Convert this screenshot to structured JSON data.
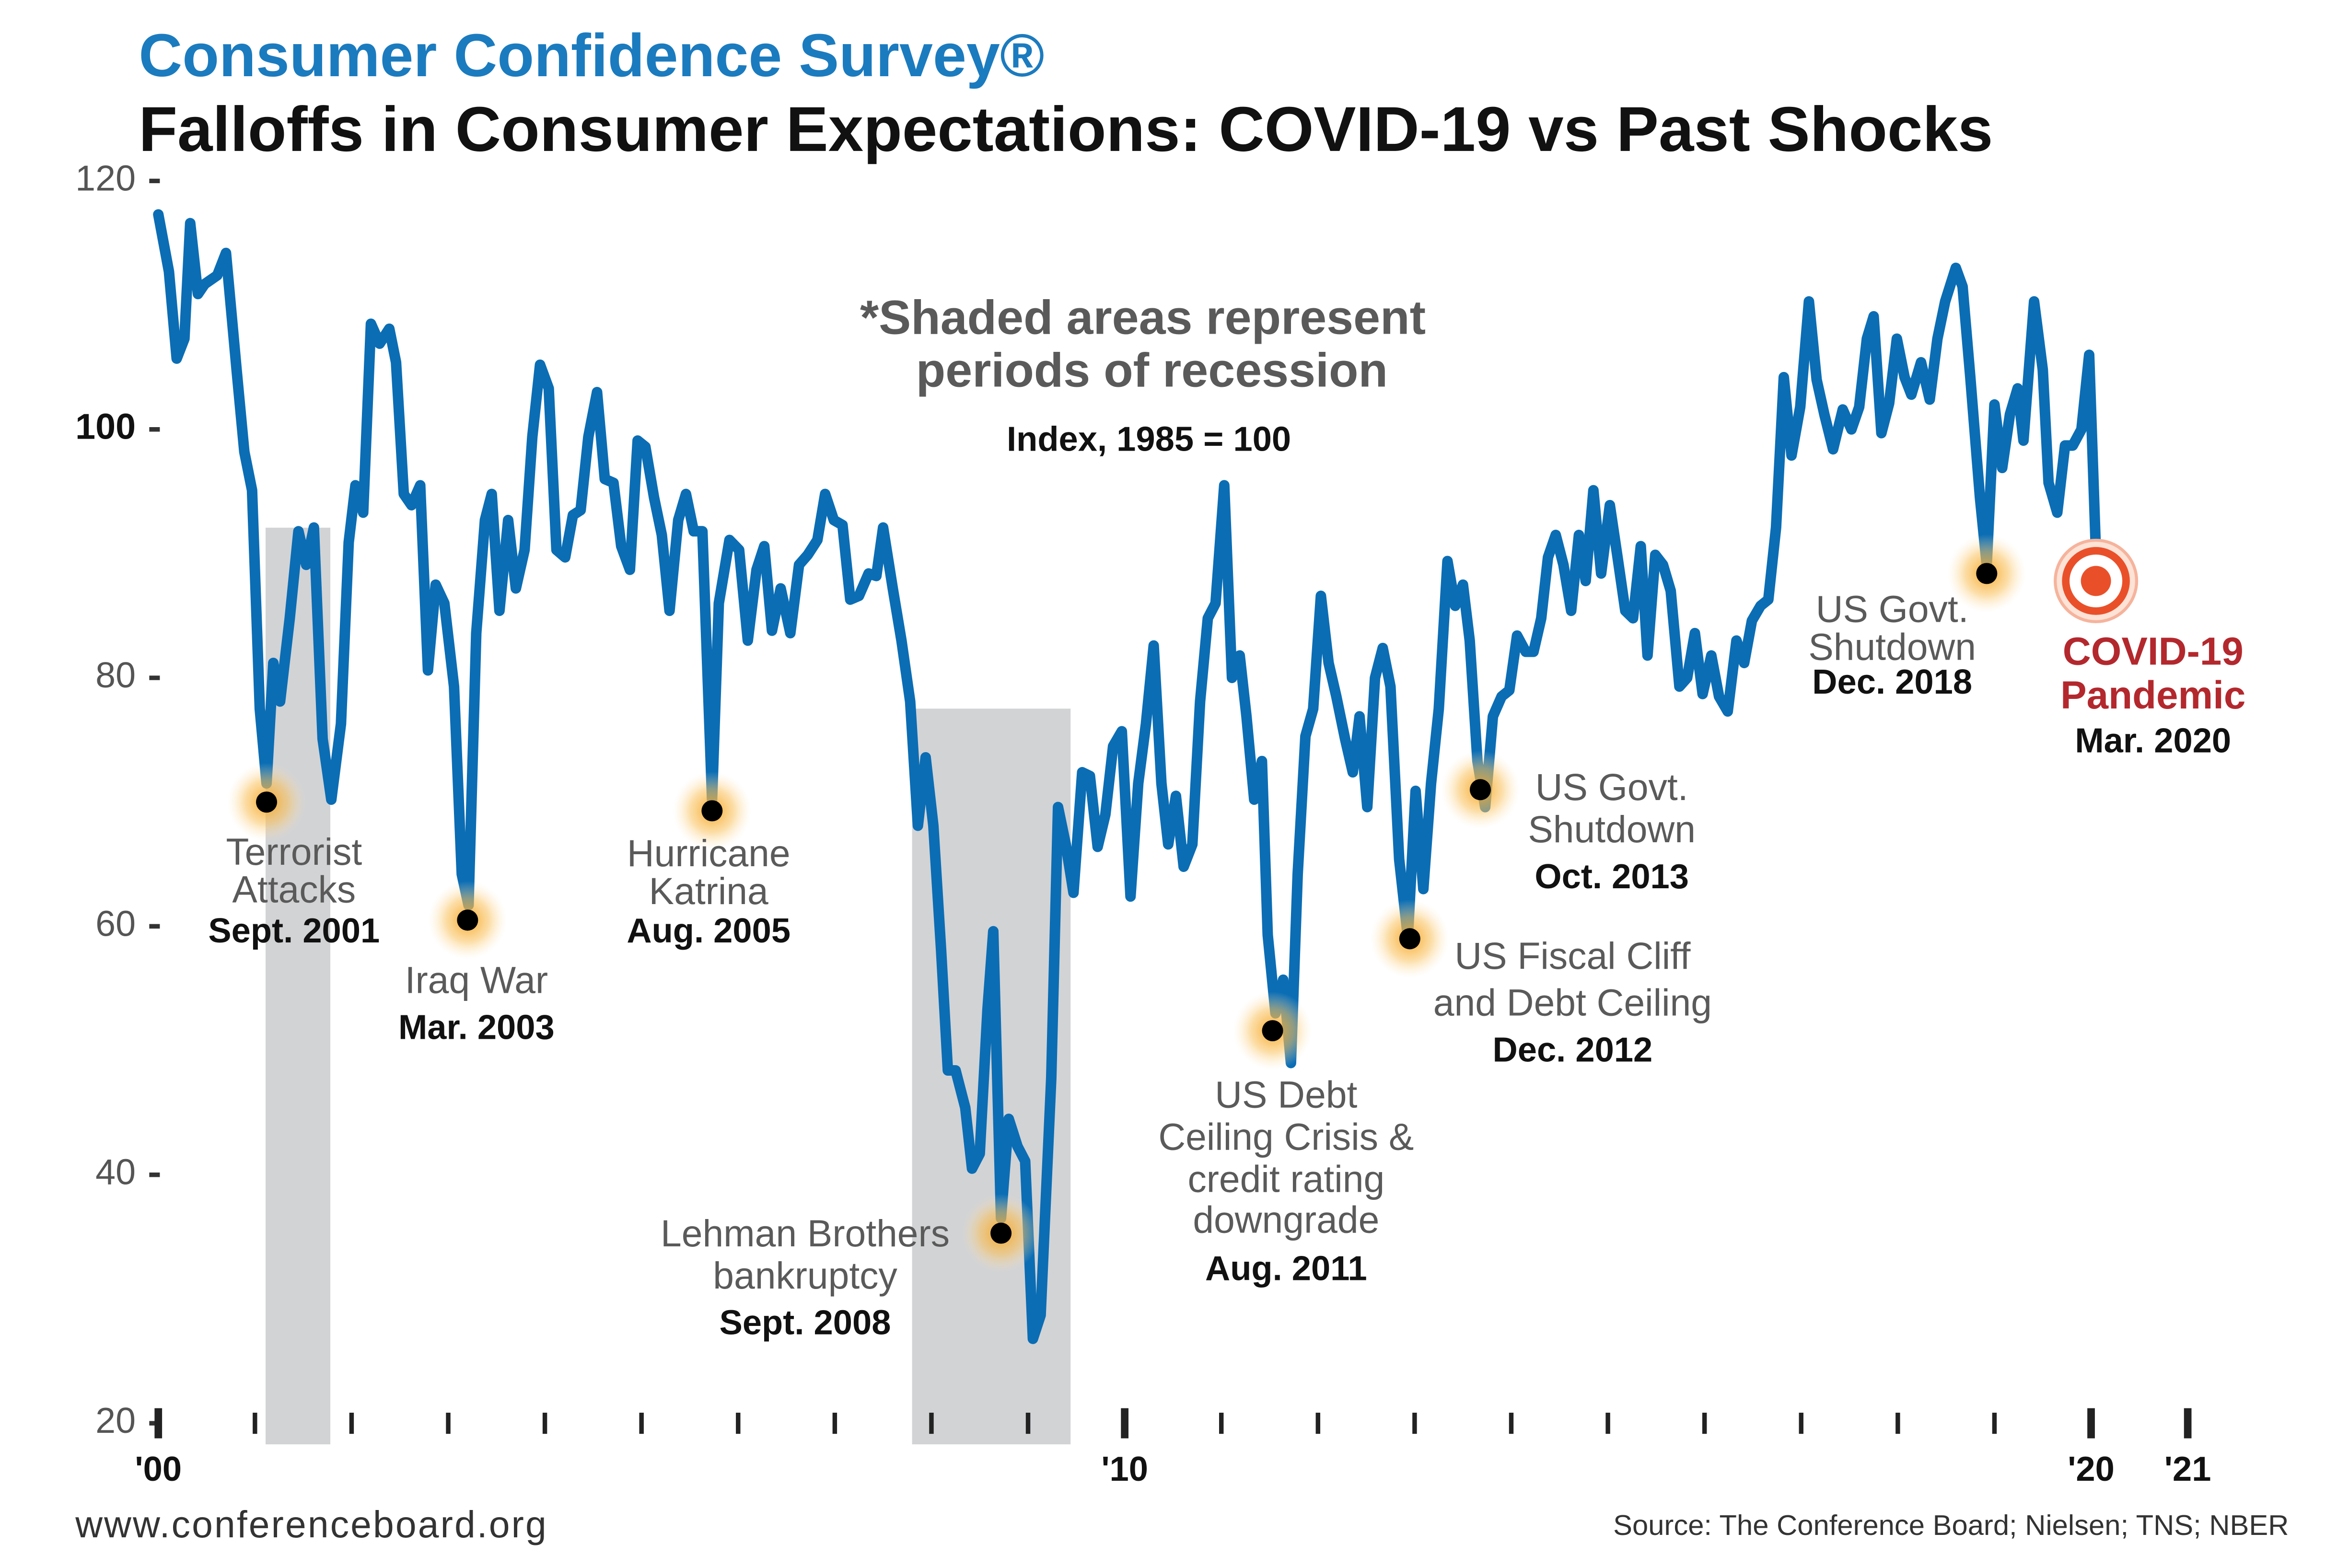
{
  "chart_data": {
    "type": "line",
    "title": "Consumer Confidence Survey®",
    "subtitle": "Falloffs in Consumer Expectations: COVID-19 vs Past Shocks",
    "note_lines": [
      "*Shaded areas represent",
      "periods of recession"
    ],
    "index_note": "Index, 1985 = 100",
    "footer_left": "www.conferenceboard.org",
    "footer_right": "Source: The Conference Board; Nielsen; TNS; NBER",
    "color": "#0b6db4",
    "xlim": [
      2000,
      2021
    ],
    "ylim": [
      20,
      120
    ],
    "yticks": [
      20,
      40,
      60,
      80,
      100,
      120
    ],
    "xticks": [
      {
        "value": 2000,
        "label": "'00"
      },
      {
        "value": 2001,
        "label": null
      },
      {
        "value": 2002,
        "label": null
      },
      {
        "value": 2003,
        "label": null
      },
      {
        "value": 2004,
        "label": null
      },
      {
        "value": 2005,
        "label": null
      },
      {
        "value": 2006,
        "label": null
      },
      {
        "value": 2007,
        "label": null
      },
      {
        "value": 2008,
        "label": null
      },
      {
        "value": 2009,
        "label": null
      },
      {
        "value": 2010,
        "label": "'10"
      },
      {
        "value": 2011,
        "label": null
      },
      {
        "value": 2012,
        "label": null
      },
      {
        "value": 2013,
        "label": null
      },
      {
        "value": 2014,
        "label": null
      },
      {
        "value": 2015,
        "label": null
      },
      {
        "value": 2016,
        "label": null
      },
      {
        "value": 2017,
        "label": null
      },
      {
        "value": 2018,
        "label": null
      },
      {
        "value": 2019,
        "label": null
      },
      {
        "value": 2020,
        "label": "'20"
      },
      {
        "value": 2021,
        "label": "'21"
      }
    ],
    "recessions": [
      [
        2001.11,
        2001.78
      ],
      [
        2007.8,
        2009.44
      ]
    ],
    "x": [
      2000.0,
      2000.11,
      2000.19,
      2000.27,
      2000.33,
      2000.41,
      2000.48,
      2000.61,
      2000.7,
      2000.81,
      2000.89,
      2000.97,
      2001.05,
      2001.12,
      2001.19,
      2001.26,
      2001.36,
      2001.45,
      2001.53,
      2001.61,
      2001.7,
      2001.79,
      2001.89,
      2001.97,
      2002.04,
      2002.12,
      2002.2,
      2002.29,
      2002.39,
      2002.46,
      2002.54,
      2002.62,
      2002.71,
      2002.79,
      2002.87,
      2002.96,
      2003.06,
      2003.14,
      2003.21,
      2003.29,
      2003.38,
      2003.45,
      2003.53,
      2003.62,
      2003.7,
      2003.79,
      2003.87,
      2003.95,
      2004.04,
      2004.12,
      2004.21,
      2004.29,
      2004.37,
      2004.45,
      2004.54,
      2004.62,
      2004.71,
      2004.79,
      2004.88,
      2004.96,
      2005.04,
      2005.13,
      2005.21,
      2005.29,
      2005.38,
      2005.46,
      2005.54,
      2005.63,
      2005.73,
      2005.8,
      2005.91,
      2006.01,
      2006.1,
      2006.19,
      2006.27,
      2006.35,
      2006.44,
      2006.54,
      2006.63,
      2006.72,
      2006.82,
      2006.9,
      2006.99,
      2007.08,
      2007.16,
      2007.25,
      2007.35,
      2007.43,
      2007.5,
      2007.6,
      2007.69,
      2007.78,
      2007.86,
      2007.94,
      2008.02,
      2008.1,
      2008.17,
      2008.25,
      2008.35,
      2008.42,
      2008.5,
      2008.58,
      2008.64,
      2008.72,
      2008.8,
      2008.89,
      2008.97,
      2009.05,
      2009.13,
      2009.24,
      2009.31,
      2009.39,
      2009.47,
      2009.56,
      2009.64,
      2009.72,
      2009.8,
      2009.88,
      2009.97,
      2010.06,
      2010.14,
      2010.22,
      2010.3,
      2010.38,
      2010.45,
      2010.53,
      2010.61,
      2010.7,
      2010.78,
      2010.86,
      2010.94,
      2011.03,
      2011.11,
      2011.19,
      2011.26,
      2011.34,
      2011.42,
      2011.48,
      2011.56,
      2011.64,
      2011.72,
      2011.79,
      2011.87,
      2011.95,
      2012.03,
      2012.11,
      2012.19,
      2012.28,
      2012.36,
      2012.43,
      2012.51,
      2012.59,
      2012.67,
      2012.75,
      2012.84,
      2012.93,
      2013.01,
      2013.09,
      2013.17,
      2013.25,
      2013.34,
      2013.42,
      2013.5,
      2013.57,
      2013.65,
      2013.73,
      2013.81,
      2013.9,
      2013.98,
      2014.06,
      2014.15,
      2014.23,
      2014.31,
      2014.38,
      2014.46,
      2014.54,
      2014.62,
      2014.7,
      2014.77,
      2014.85,
      2014.93,
      2015.02,
      2015.1,
      2015.18,
      2015.26,
      2015.34,
      2015.41,
      2015.49,
      2015.57,
      2015.65,
      2015.74,
      2015.82,
      2015.9,
      2015.98,
      2016.07,
      2016.15,
      2016.24,
      2016.33,
      2016.41,
      2016.49,
      2016.58,
      2016.66,
      2016.74,
      2016.82,
      2016.9,
      2016.99,
      2017.08,
      2017.16,
      2017.24,
      2017.33,
      2017.43,
      2017.52,
      2017.6,
      2017.68,
      2017.75,
      2017.83,
      2017.91,
      2017.99,
      2018.07,
      2018.14,
      2018.24,
      2018.33,
      2018.41,
      2018.49,
      2018.6,
      2018.67,
      2018.75,
      2018.85,
      2018.92,
      2019.0,
      2019.08,
      2019.16,
      2019.24,
      2019.3,
      2019.41,
      2019.5,
      2019.56,
      2019.65,
      2019.73,
      2019.81,
      2019.9,
      2019.98,
      2020.06
    ],
    "values": [
      117.3,
      112.7,
      105.7,
      107.3,
      116.6,
      110.9,
      111.7,
      112.4,
      114.2,
      104.8,
      98.2,
      95.1,
      77.5,
      71.5,
      81.2,
      78.1,
      84.8,
      91.8,
      89.1,
      92.1,
      75.1,
      70.2,
      76.3,
      90.9,
      95.5,
      93.3,
      108.5,
      106.9,
      108.1,
      105.4,
      94.8,
      93.9,
      95.5,
      80.6,
      87.5,
      86.0,
      79.3,
      64.2,
      61.7,
      83.6,
      92.7,
      94.8,
      85.4,
      92.7,
      87.2,
      90.3,
      99.4,
      105.2,
      103.3,
      90.3,
      89.7,
      93.1,
      93.5,
      99.4,
      103.0,
      96.0,
      95.7,
      90.6,
      88.7,
      99.1,
      98.6,
      94.5,
      91.5,
      85.4,
      92.7,
      94.8,
      91.8,
      91.8,
      70.2,
      86.0,
      91.1,
      90.3,
      83.0,
      88.7,
      90.6,
      83.8,
      87.2,
      83.6,
      89.1,
      89.9,
      91.1,
      94.8,
      92.7,
      92.3,
      86.3,
      86.6,
      88.4,
      88.2,
      92.1,
      87.2,
      83.0,
      78.1,
      68.1,
      73.6,
      68.1,
      58.1,
      48.4,
      48.4,
      45.4,
      40.5,
      41.7,
      53.3,
      59.6,
      36.5,
      44.5,
      42.3,
      41.1,
      26.8,
      28.7,
      47.8,
      69.6,
      66.6,
      62.7,
      72.4,
      72.1,
      66.4,
      69.0,
      74.5,
      75.7,
      62.4,
      71.5,
      76.3,
      82.6,
      71.5,
      66.6,
      70.5,
      64.8,
      66.6,
      78.1,
      84.8,
      86.0,
      95.5,
      80.0,
      81.8,
      76.9,
      70.2,
      73.3,
      59.3,
      53.0,
      55.7,
      49.0,
      64.2,
      75.3,
      77.5,
      86.6,
      81.2,
      78.5,
      75.1,
      72.4,
      76.9,
      69.6,
      80.0,
      82.4,
      79.3,
      65.4,
      59.1,
      70.9,
      63.0,
      71.5,
      77.5,
      89.4,
      85.8,
      87.5,
      83.0,
      73.3,
      69.6,
      76.9,
      78.5,
      79.0,
      83.4,
      82.1,
      82.1,
      84.8,
      89.7,
      91.5,
      89.1,
      85.4,
      91.5,
      87.8,
      95.1,
      88.4,
      93.9,
      89.7,
      85.4,
      84.8,
      90.6,
      81.8,
      89.9,
      89.1,
      87.0,
      79.3,
      80.0,
      83.6,
      78.7,
      81.8,
      78.5,
      77.3,
      83.0,
      81.2,
      84.6,
      85.8,
      86.3,
      92.1,
      104.2,
      97.9,
      101.8,
      110.3,
      104.0,
      101.2,
      98.4,
      101.6,
      100.0,
      101.8,
      107.3,
      109.1,
      99.7,
      102.1,
      107.3,
      104.2,
      102.8,
      105.4,
      102.4,
      107.3,
      110.3,
      113.0,
      111.5,
      104.2,
      94.5,
      89.1,
      102.0,
      96.9,
      101.2,
      103.3,
      99.1,
      110.3,
      104.8,
      95.7,
      93.3,
      98.7,
      98.7,
      100.0,
      106.0,
      87.8
    ],
    "annotations": [
      {
        "lines": [
          "Terrorist",
          "Attacks"
        ],
        "date": "Sept. 2001",
        "x": 2001.12,
        "y": 70.0
      },
      {
        "lines": [
          "Iraq War"
        ],
        "date": "Mar. 2003",
        "x": 2003.2,
        "y": 60.5
      },
      {
        "lines": [
          "Hurricane",
          "Katrina"
        ],
        "date": "Aug. 2005",
        "x": 2005.73,
        "y": 69.3
      },
      {
        "lines": [
          "Lehman Brothers",
          "bankruptcy"
        ],
        "date": "Sept. 2008",
        "x": 2008.72,
        "y": 35.3
      },
      {
        "lines": [
          "US Debt",
          "Ceiling Crisis &",
          "credit rating",
          "downgrade"
        ],
        "date": "Aug. 2011",
        "x": 2011.53,
        "y": 51.6
      },
      {
        "lines": [
          "US Fiscal Cliff",
          "and Debt Ceiling"
        ],
        "date": "Dec. 2012",
        "x": 2012.95,
        "y": 59.0
      },
      {
        "lines": [
          "US Govt.",
          "Shutdown"
        ],
        "date": "Oct. 2013",
        "x": 2013.68,
        "y": 71.0
      },
      {
        "lines": [
          "US Govt.",
          "Shutdown"
        ],
        "date": "Dec. 2018",
        "x": 2018.92,
        "y": 88.4
      },
      {
        "lines": [
          "COVID-19",
          "Pandemic"
        ],
        "date": "Mar. 2020",
        "x": 2020.05,
        "y": 87.8
      }
    ]
  }
}
